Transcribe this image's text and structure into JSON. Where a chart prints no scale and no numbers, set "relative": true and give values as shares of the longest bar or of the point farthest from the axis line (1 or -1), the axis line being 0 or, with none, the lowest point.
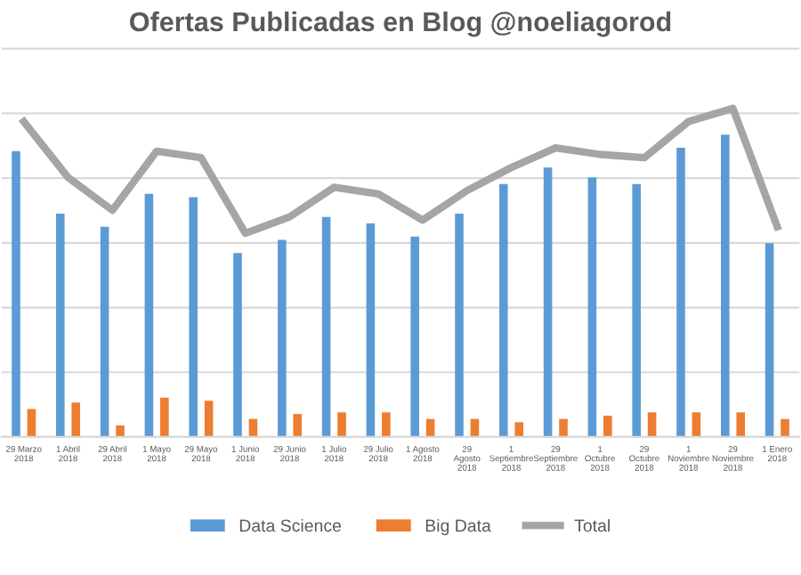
{
  "chart_data": {
    "type": "bar",
    "title": "Ofertas Publicadas en Blog @noeliagorod",
    "relative": true,
    "grid": "y",
    "legend": "bottom",
    "tick_labels": "x",
    "categories": [
      "29 Marzo 2018",
      "1 Abril 2018",
      "29 Abril 2018",
      "1 Mayo 2018",
      "29 Mayo 2018",
      "1 Junio 2018",
      "29 Junio 2018",
      "1 Julio 2018",
      "29 Julio 2018",
      "1 Agosto 2018",
      "29 Agosto 2018",
      "1 Septiembre 2018",
      "29 Septiembre 2018",
      "1 Octubre 2018",
      "29 Octubre 2018",
      "1 Noviembre 2018",
      "29 Noviembre 2018",
      "1 Enero 2018"
    ],
    "series": [
      {
        "name": "Data Science",
        "color": "#5b9bd5",
        "values": [
          0.87,
          0.68,
          0.64,
          0.74,
          0.73,
          0.56,
          0.6,
          0.67,
          0.65,
          0.61,
          0.68,
          0.77,
          0.82,
          0.79,
          0.77,
          0.88,
          0.92,
          0.59
        ]
      },
      {
        "name": "Big Data",
        "color": "#ed7d31",
        "values": [
          0.085,
          0.105,
          0.035,
          0.12,
          0.11,
          0.055,
          0.07,
          0.075,
          0.075,
          0.055,
          0.055,
          0.045,
          0.055,
          0.065,
          0.075,
          0.075,
          0.075,
          0.055
        ]
      },
      {
        "name": "Total",
        "type": "line",
        "color": "#a5a5a5",
        "marker": "none",
        "line_style": "solid",
        "values": [
          0.96,
          0.79,
          0.69,
          0.87,
          0.85,
          0.62,
          0.67,
          0.76,
          0.74,
          0.66,
          0.75,
          0.82,
          0.88,
          0.86,
          0.85,
          0.96,
          1.0,
          0.64
        ]
      }
    ]
  }
}
